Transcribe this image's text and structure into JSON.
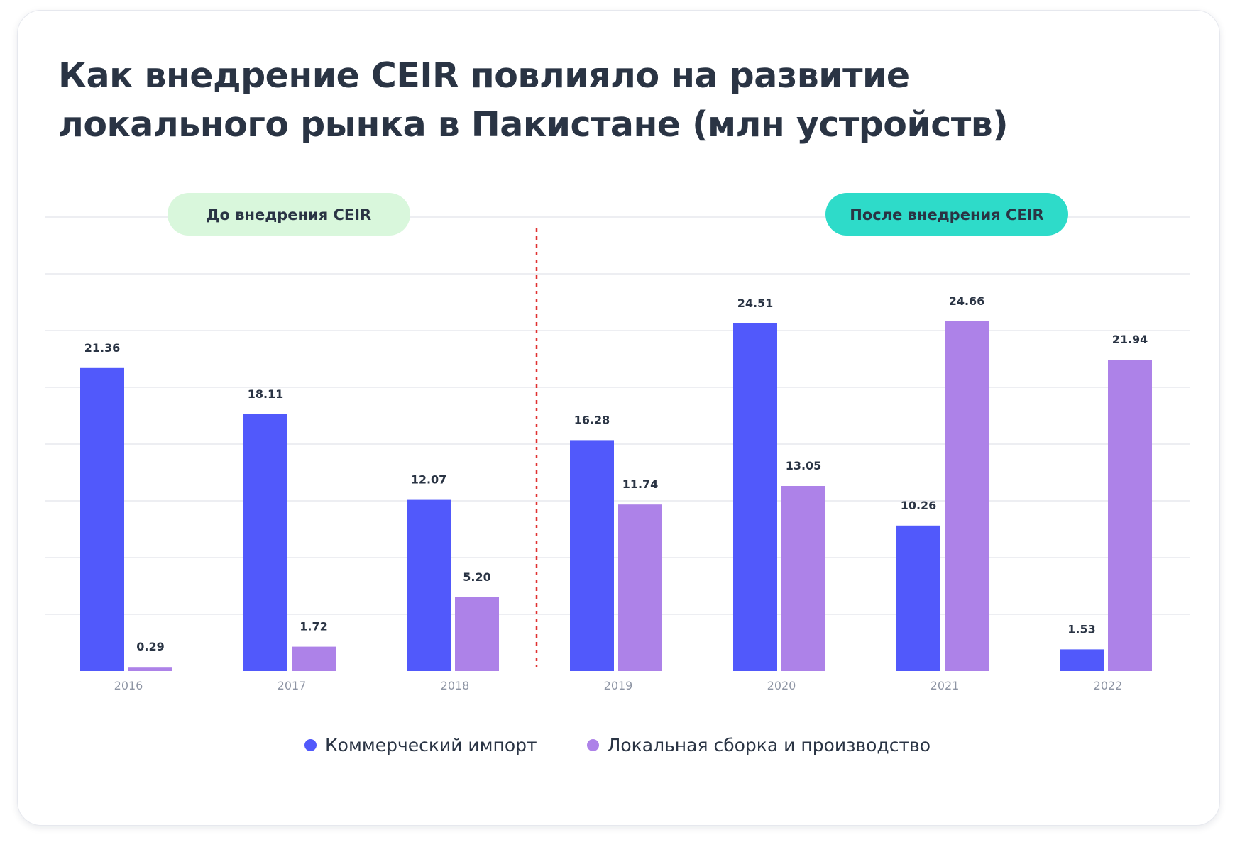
{
  "title": "Как внедрение CEIR повлияло на развитие локального рынка в Пакистане (млн устройств)",
  "periods": {
    "before_label": "До внедрения CEIR",
    "after_label": "После внедрения CEIR",
    "split_after_category_index": 2
  },
  "colors": {
    "import": "#5159fb",
    "local": "#ad82e8",
    "before_pill_bg": "#d9f7dc",
    "after_pill_bg": "#2edbc9",
    "divider": "#e03131",
    "grid": "#e7e9ee",
    "text": "#2a3444"
  },
  "chart_data": {
    "type": "bar",
    "title": "Как внедрение CEIR повлияло на развитие локального рынка в Пакистане (млн устройств)",
    "categories": [
      "2016",
      "2017",
      "2018",
      "2019",
      "2020",
      "2021",
      "2022"
    ],
    "series": [
      {
        "name": "Коммерческий импорт",
        "values": [
          21.36,
          18.11,
          12.07,
          16.28,
          24.51,
          10.26,
          1.53
        ]
      },
      {
        "name": "Локальная сборка и производство",
        "values": [
          0.29,
          1.72,
          5.2,
          11.74,
          13.05,
          24.66,
          21.94
        ]
      }
    ],
    "value_labels": [
      [
        "21.36",
        "18.11",
        "12.07",
        "16.28",
        "24.51",
        "10.26",
        "1.53"
      ],
      [
        "0.29",
        "1.72",
        "5.20",
        "11.74",
        "13.05",
        "24.66",
        "21.94"
      ]
    ],
    "ylim": [
      0,
      32
    ],
    "grid": true,
    "legend_position": "bottom-center"
  }
}
